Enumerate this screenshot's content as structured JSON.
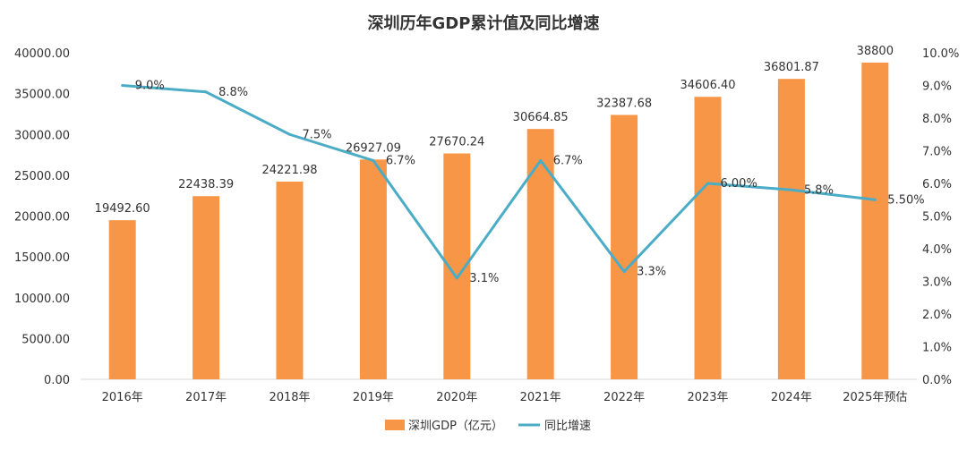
{
  "chart_data": {
    "type": "bar+line",
    "title": "深圳历年GDP累计值及同比增速",
    "categories": [
      "2016年",
      "2017年",
      "2018年",
      "2019年",
      "2020年",
      "2021年",
      "2022年",
      "2023年",
      "2024年",
      "2025年预估"
    ],
    "bar_series": {
      "name": "深圳GDP（亿元）",
      "values": [
        19492.6,
        22438.39,
        24221.98,
        26927.09,
        27670.24,
        30664.85,
        32387.68,
        34606.4,
        36801.87,
        38800
      ],
      "labels": [
        "19492.60",
        "22438.39",
        "24221.98",
        "26927.09",
        "27670.24",
        "30664.85",
        "32387.68",
        "34606.40",
        "36801.87",
        "38800"
      ],
      "color": "#F79646"
    },
    "line_series": {
      "name": "同比增速",
      "values": [
        9.0,
        8.8,
        7.5,
        6.7,
        3.1,
        6.7,
        3.3,
        6.0,
        5.8,
        5.5
      ],
      "labels": [
        "9.0%",
        "8.8%",
        "7.5%",
        "6.7%",
        "3.1%",
        "6.7%",
        "3.3%",
        "6.00%",
        "5.8%",
        "5.50%"
      ],
      "color": "#4BACC6"
    },
    "y_left": {
      "min": 0,
      "max": 40000,
      "step": 5000,
      "ticks": [
        "0.00",
        "5000.00",
        "10000.00",
        "15000.00",
        "20000.00",
        "25000.00",
        "30000.00",
        "35000.00",
        "40000.00"
      ]
    },
    "y_right": {
      "min": 0,
      "max": 10,
      "step": 1,
      "ticks": [
        "0.0%",
        "1.0%",
        "2.0%",
        "3.0%",
        "4.0%",
        "5.0%",
        "6.0%",
        "7.0%",
        "8.0%",
        "9.0%",
        "10.0%"
      ]
    },
    "legend": {
      "placement": "bottom-center"
    },
    "grid": false
  }
}
